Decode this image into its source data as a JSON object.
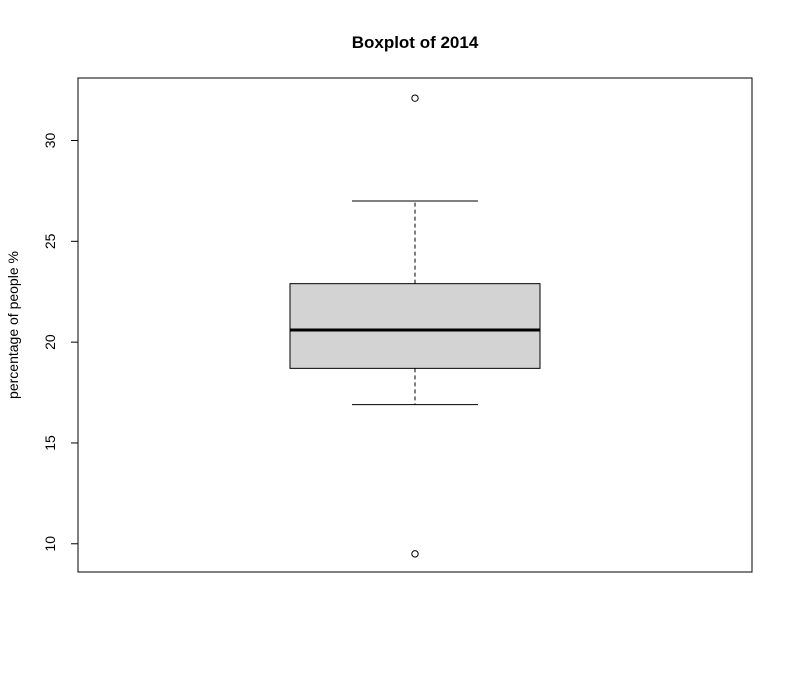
{
  "chart_data": {
    "type": "box",
    "title": "Boxplot of 2014",
    "xlabel": "",
    "ylabel": "percentage of people %",
    "ylim": [
      8.6,
      33.1
    ],
    "y_ticks": [
      10,
      15,
      20,
      25,
      30
    ],
    "y_tick_labels": [
      "10",
      "15",
      "20",
      "25",
      "30"
    ],
    "grid": false,
    "legend": "none",
    "box": {
      "whisker_low": 16.9,
      "q1": 18.7,
      "median": 20.6,
      "q3": 22.9,
      "whisker_high": 27.0,
      "outliers": [
        32.1,
        9.5
      ]
    },
    "colors": {
      "box_fill": "#d3d3d3",
      "stroke": "#000000"
    }
  }
}
